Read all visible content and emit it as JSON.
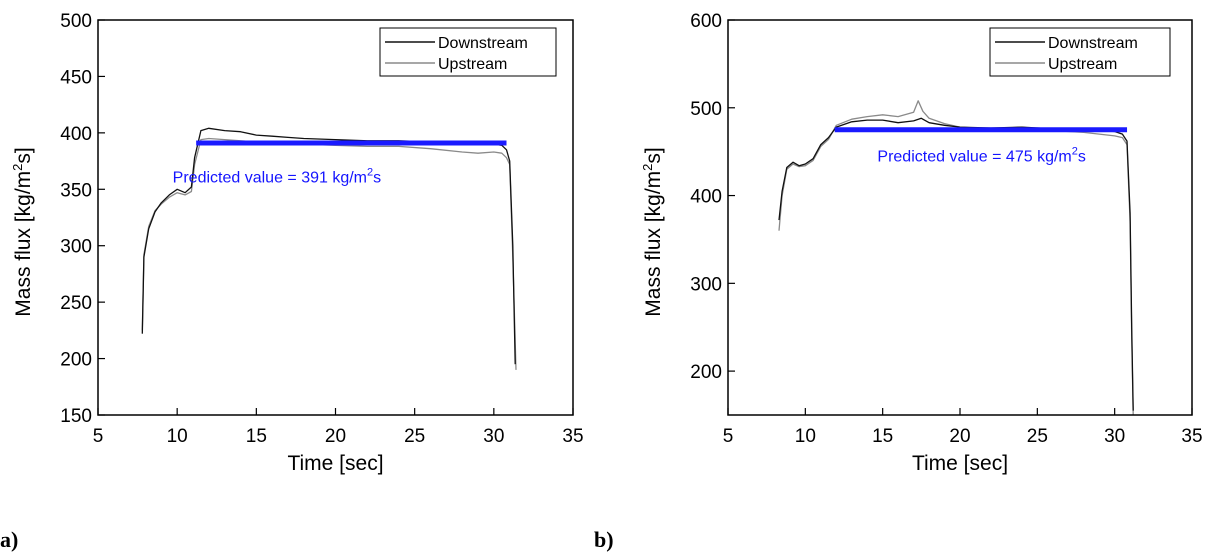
{
  "chart_data": [
    {
      "type": "line",
      "panel_label": "a)",
      "title": "",
      "xlabel": "Time [sec]",
      "ylabel_prefix": "Mass flux [kg/m",
      "ylabel_sup": "2",
      "ylabel_suffix": "s]",
      "xlim": [
        5,
        35
      ],
      "ylim": [
        150,
        500
      ],
      "xticks": [
        5,
        10,
        15,
        20,
        25,
        30,
        35
      ],
      "yticks": [
        150,
        200,
        250,
        300,
        350,
        400,
        450,
        500
      ],
      "legend_position": "top-right",
      "series": [
        {
          "name": "Downstream",
          "color": "#111111",
          "x": [
            7.8,
            7.9,
            8.2,
            8.6,
            9.0,
            9.5,
            10.0,
            10.5,
            10.9,
            11.1,
            11.5,
            12.0,
            13.0,
            14.0,
            15.0,
            16.0,
            17.0,
            18.0,
            20.0,
            22.0,
            24.0,
            26.0,
            28.0,
            29.0,
            30.0,
            30.5,
            30.8,
            31.0,
            31.2,
            31.35
          ],
          "y": [
            222,
            290,
            315,
            330,
            338,
            345,
            350,
            347,
            352,
            378,
            402,
            404,
            402,
            401,
            398,
            397,
            396,
            395,
            394,
            393,
            393,
            392,
            391,
            390,
            390,
            389,
            385,
            375,
            300,
            195
          ]
        },
        {
          "name": "Upstream",
          "color": "#8a8a8a",
          "x": [
            7.8,
            7.9,
            8.2,
            8.6,
            9.0,
            9.5,
            10.0,
            10.5,
            10.9,
            11.1,
            11.5,
            12.0,
            13.0,
            14.0,
            15.0,
            16.0,
            17.0,
            18.0,
            20.0,
            22.0,
            24.0,
            26.0,
            28.0,
            29.0,
            30.0,
            30.5,
            30.8,
            31.0,
            31.2,
            31.4
          ],
          "y": [
            225,
            292,
            317,
            331,
            337,
            343,
            347,
            345,
            348,
            372,
            394,
            395,
            394,
            393,
            392,
            391,
            390,
            390,
            389,
            388,
            388,
            386,
            383,
            382,
            383,
            382,
            378,
            372,
            290,
            190
          ]
        }
      ],
      "prediction": {
        "value": 391,
        "x_start": 11.2,
        "x_end": 30.8,
        "color": "#1a1aff"
      },
      "annotation": {
        "prefix": "Predicted value = 391 kg/m",
        "sup": "2",
        "suffix": "s"
      },
      "annotation_at": {
        "x": 16.3,
        "y": 356
      }
    },
    {
      "type": "line",
      "panel_label": "b)",
      "title": "",
      "xlabel": "Time [sec]",
      "ylabel_prefix": "Mass flux [kg/m",
      "ylabel_sup": "2",
      "ylabel_suffix": "s]",
      "xlim": [
        5,
        35
      ],
      "ylim": [
        150,
        600
      ],
      "xticks": [
        5,
        10,
        15,
        20,
        25,
        30,
        35
      ],
      "yticks": [
        200,
        300,
        400,
        500,
        600
      ],
      "legend_position": "top-right",
      "series": [
        {
          "name": "Downstream",
          "color": "#111111",
          "x": [
            8.3,
            8.5,
            8.8,
            9.2,
            9.6,
            10.0,
            10.5,
            11.0,
            11.5,
            12.0,
            13.0,
            14.0,
            15.0,
            16.0,
            17.0,
            17.5,
            18.0,
            19.0,
            20.0,
            22.0,
            24.0,
            26.0,
            28.0,
            30.0,
            30.5,
            30.8,
            31.0,
            31.1,
            31.2
          ],
          "y": [
            372,
            405,
            432,
            438,
            434,
            436,
            442,
            458,
            466,
            478,
            484,
            486,
            486,
            483,
            485,
            488,
            483,
            480,
            478,
            477,
            478,
            476,
            475,
            473,
            470,
            462,
            380,
            250,
            155
          ]
        },
        {
          "name": "Upstream",
          "color": "#8a8a8a",
          "x": [
            8.3,
            8.5,
            8.8,
            9.2,
            9.6,
            10.0,
            10.5,
            11.0,
            11.5,
            12.0,
            13.0,
            14.0,
            15.0,
            16.0,
            17.0,
            17.3,
            17.6,
            18.0,
            19.0,
            20.0,
            22.0,
            24.0,
            26.0,
            28.0,
            30.0,
            30.5,
            30.8,
            31.0,
            31.1,
            31.2
          ],
          "y": [
            360,
            400,
            430,
            436,
            433,
            434,
            440,
            456,
            464,
            480,
            487,
            490,
            492,
            490,
            495,
            508,
            496,
            488,
            482,
            478,
            476,
            478,
            474,
            472,
            468,
            466,
            458,
            370,
            240,
            150
          ]
        }
      ],
      "prediction": {
        "value": 475,
        "x_start": 11.9,
        "x_end": 30.8,
        "color": "#1a1aff"
      },
      "annotation": {
        "prefix": "Predicted value = 475 kg/m",
        "sup": "2",
        "suffix": "s"
      },
      "annotation_at": {
        "x": 21.4,
        "y": 439
      }
    }
  ]
}
